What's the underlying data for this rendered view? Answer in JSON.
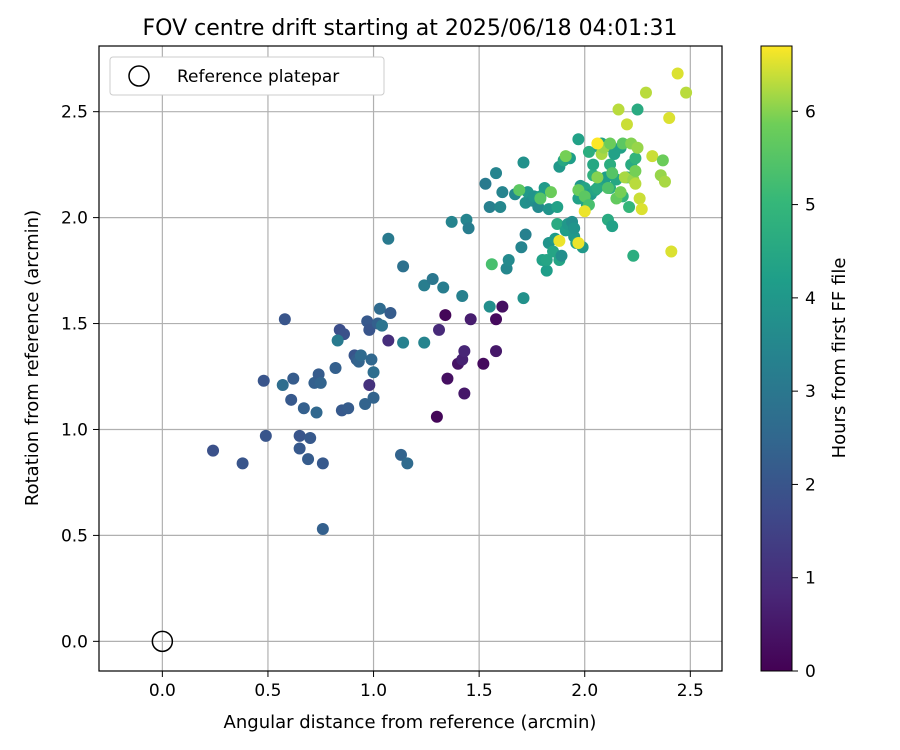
{
  "chart_data": {
    "type": "scatter",
    "title": "FOV centre drift starting at 2025/06/18 04:01:31",
    "xlabel": "Angular distance from reference (arcmin)",
    "ylabel": "Rotation from reference (arcmin)",
    "xlim": [
      -0.3,
      2.65
    ],
    "ylim": [
      -0.14,
      2.81
    ],
    "x_ticks": [
      0.0,
      0.5,
      1.0,
      1.5,
      2.0,
      2.5
    ],
    "x_tick_labels": [
      "0.0",
      "0.5",
      "1.0",
      "1.5",
      "2.0",
      "2.5"
    ],
    "y_ticks": [
      0.0,
      0.5,
      1.0,
      1.5,
      2.0,
      2.5
    ],
    "y_tick_labels": [
      "0.0",
      "0.5",
      "1.0",
      "1.5",
      "2.0",
      "2.5"
    ],
    "grid": true,
    "legend": {
      "placement": "top-left",
      "entries": [
        "Reference platepar"
      ]
    },
    "reference_point": {
      "x": 0.0,
      "y": 0.0,
      "marker": "open-circle"
    },
    "colorbar": {
      "label": "Hours from first FF file",
      "colormap": "viridis",
      "range": [
        0,
        6.7
      ],
      "ticks": [
        0,
        1,
        2,
        3,
        4,
        5,
        6
      ],
      "tick_labels": [
        "0",
        "1",
        "2",
        "3",
        "4",
        "5",
        "6"
      ]
    },
    "points": [
      [
        1.3,
        1.06,
        0.1
      ],
      [
        1.34,
        1.54,
        0.1
      ],
      [
        1.35,
        1.24,
        0.3
      ],
      [
        1.4,
        1.31,
        0.4
      ],
      [
        1.42,
        1.33,
        0.7
      ],
      [
        1.43,
        1.17,
        0.5
      ],
      [
        1.43,
        1.37,
        0.8
      ],
      [
        1.46,
        1.52,
        0.6
      ],
      [
        1.52,
        1.31,
        0.2
      ],
      [
        1.58,
        1.37,
        0.5
      ],
      [
        1.58,
        1.52,
        0.2
      ],
      [
        1.61,
        1.58,
        0.3
      ],
      [
        1.31,
        1.47,
        0.9
      ],
      [
        1.07,
        1.42,
        1.0
      ],
      [
        0.98,
        1.21,
        1.1
      ],
      [
        0.24,
        0.9,
        1.9
      ],
      [
        0.38,
        0.84,
        2.0
      ],
      [
        0.48,
        1.23,
        2.0
      ],
      [
        0.49,
        0.97,
        2.0
      ],
      [
        0.58,
        1.52,
        2.0
      ],
      [
        0.61,
        1.14,
        2.1
      ],
      [
        0.62,
        1.24,
        2.2
      ],
      [
        0.65,
        0.97,
        2.0
      ],
      [
        0.65,
        0.91,
        2.1
      ],
      [
        0.67,
        1.1,
        2.3
      ],
      [
        0.69,
        0.86,
        2.2
      ],
      [
        0.7,
        0.96,
        2.1
      ],
      [
        0.72,
        1.22,
        2.3
      ],
      [
        0.73,
        1.08,
        2.5
      ],
      [
        0.74,
        1.26,
        2.2
      ],
      [
        0.75,
        1.22,
        2.4
      ],
      [
        0.76,
        0.84,
        2.1
      ],
      [
        0.76,
        0.53,
        2.3
      ],
      [
        0.82,
        1.29,
        2.3
      ],
      [
        0.84,
        1.47,
        1.8
      ],
      [
        0.85,
        1.09,
        2.1
      ],
      [
        0.86,
        1.45,
        1.9
      ],
      [
        0.88,
        1.1,
        2.2
      ],
      [
        0.91,
        1.35,
        2.0
      ],
      [
        0.92,
        1.33,
        2.2
      ],
      [
        0.93,
        1.32,
        2.4
      ],
      [
        0.94,
        1.35,
        2.6
      ],
      [
        0.96,
        1.12,
        2.4
      ],
      [
        0.97,
        1.51,
        2.1
      ],
      [
        0.98,
        1.47,
        2.0
      ],
      [
        0.99,
        1.33,
        2.5
      ],
      [
        1.0,
        1.27,
        2.7
      ],
      [
        1.0,
        1.15,
        2.4
      ],
      [
        1.02,
        1.5,
        2.3
      ],
      [
        1.03,
        1.57,
        2.6
      ],
      [
        1.04,
        1.49,
        2.9
      ],
      [
        1.08,
        1.55,
        2.2
      ],
      [
        1.13,
        0.88,
        2.4
      ],
      [
        1.16,
        0.84,
        2.6
      ],
      [
        0.57,
        1.21,
        2.7
      ],
      [
        0.83,
        1.42,
        3.1
      ],
      [
        1.07,
        1.9,
        3.1
      ],
      [
        1.14,
        1.77,
        2.8
      ],
      [
        1.14,
        1.41,
        3.3
      ],
      [
        1.24,
        1.41,
        3.4
      ],
      [
        1.24,
        1.68,
        3.2
      ],
      [
        1.28,
        1.71,
        3.0
      ],
      [
        1.33,
        1.67,
        3.2
      ],
      [
        1.37,
        1.98,
        3.4
      ],
      [
        1.42,
        1.63,
        3.3
      ],
      [
        1.44,
        1.99,
        3.4
      ],
      [
        1.45,
        1.95,
        3.2
      ],
      [
        1.53,
        2.16,
        3.1
      ],
      [
        1.55,
        2.05,
        3.3
      ],
      [
        1.55,
        1.58,
        3.7
      ],
      [
        1.58,
        2.21,
        3.4
      ],
      [
        1.6,
        2.05,
        3.5
      ],
      [
        1.61,
        2.12,
        3.4
      ],
      [
        1.63,
        1.76,
        3.5
      ],
      [
        1.64,
        1.8,
        3.6
      ],
      [
        1.67,
        2.11,
        3.6
      ],
      [
        1.7,
        1.86,
        3.4
      ],
      [
        1.71,
        1.62,
        3.8
      ],
      [
        1.71,
        2.26,
        3.8
      ],
      [
        1.72,
        2.07,
        3.8
      ],
      [
        1.72,
        1.92,
        3.3
      ],
      [
        1.73,
        2.12,
        4.0
      ],
      [
        1.75,
        2.08,
        3.7
      ],
      [
        1.76,
        2.1,
        3.9
      ],
      [
        1.78,
        2.05,
        3.6
      ],
      [
        1.79,
        2.1,
        4.3
      ],
      [
        1.8,
        1.8,
        4.3
      ],
      [
        1.81,
        2.14,
        4.1
      ],
      [
        1.82,
        1.75,
        4.2
      ],
      [
        1.82,
        1.8,
        4.4
      ],
      [
        1.83,
        1.88,
        3.9
      ],
      [
        1.83,
        2.04,
        3.9
      ],
      [
        1.85,
        1.84,
        4.4
      ],
      [
        1.86,
        1.9,
        4.1
      ],
      [
        1.87,
        2.05,
        4.3
      ],
      [
        1.87,
        1.97,
        4.6
      ],
      [
        1.88,
        1.8,
        4.4
      ],
      [
        1.88,
        2.24,
        4.0
      ],
      [
        1.89,
        1.82,
        3.7
      ],
      [
        1.9,
        2.27,
        4.5
      ],
      [
        1.91,
        1.94,
        4.2
      ],
      [
        1.92,
        1.97,
        4.0
      ],
      [
        1.93,
        2.28,
        4.2
      ],
      [
        1.94,
        1.98,
        3.7
      ],
      [
        1.95,
        1.91,
        4.0
      ],
      [
        1.95,
        1.95,
        3.9
      ],
      [
        1.96,
        1.88,
        4.3
      ],
      [
        1.97,
        2.09,
        4.3
      ],
      [
        1.97,
        2.37,
        4.3
      ],
      [
        1.98,
        2.15,
        4.0
      ],
      [
        1.99,
        1.86,
        4.0
      ],
      [
        2.0,
        2.14,
        4.4
      ],
      [
        2.01,
        2.06,
        4.4
      ],
      [
        2.02,
        2.31,
        4.7
      ],
      [
        2.03,
        2.11,
        4.1
      ],
      [
        2.04,
        2.2,
        4.8
      ],
      [
        2.04,
        2.25,
        4.5
      ],
      [
        2.05,
        2.13,
        4.4
      ],
      [
        2.06,
        2.14,
        4.6
      ],
      [
        2.07,
        2.33,
        4.3
      ],
      [
        2.08,
        2.35,
        4.4
      ],
      [
        2.09,
        2.18,
        4.4
      ],
      [
        2.1,
        2.19,
        4.2
      ],
      [
        2.11,
        1.99,
        4.6
      ],
      [
        2.12,
        2.14,
        4.7
      ],
      [
        2.12,
        2.25,
        4.7
      ],
      [
        2.13,
        1.96,
        4.3
      ],
      [
        2.13,
        2.33,
        4.4
      ],
      [
        2.14,
        2.3,
        4.3
      ],
      [
        2.15,
        2.18,
        4.5
      ],
      [
        2.17,
        2.33,
        4.3
      ],
      [
        2.18,
        2.1,
        4.9
      ],
      [
        2.2,
        2.19,
        4.8
      ],
      [
        2.21,
        2.05,
        5.0
      ],
      [
        2.22,
        2.25,
        4.6
      ],
      [
        2.23,
        1.82,
        4.7
      ],
      [
        2.24,
        2.28,
        4.9
      ],
      [
        2.25,
        2.51,
        4.6
      ],
      [
        1.56,
        1.78,
        5.3
      ],
      [
        1.69,
        2.13,
        5.6
      ],
      [
        1.79,
        2.09,
        5.5
      ],
      [
        1.84,
        2.12,
        5.8
      ],
      [
        1.91,
        2.29,
        5.9
      ],
      [
        1.97,
        2.13,
        5.8
      ],
      [
        2.0,
        2.1,
        5.6
      ],
      [
        2.02,
        2.06,
        5.3
      ],
      [
        2.06,
        2.19,
        6.0
      ],
      [
        2.08,
        2.3,
        6.2
      ],
      [
        2.09,
        2.33,
        6.1
      ],
      [
        2.11,
        2.14,
        5.4
      ],
      [
        2.12,
        2.35,
        5.8
      ],
      [
        2.13,
        2.21,
        5.5
      ],
      [
        2.15,
        2.09,
        5.7
      ],
      [
        2.16,
        2.51,
        6.3
      ],
      [
        2.17,
        2.12,
        5.9
      ],
      [
        2.18,
        2.35,
        5.6
      ],
      [
        2.19,
        2.19,
        6.2
      ],
      [
        2.2,
        2.44,
        6.4
      ],
      [
        2.22,
        2.35,
        6.0
      ],
      [
        2.23,
        2.18,
        6.1
      ],
      [
        2.24,
        2.22,
        5.9
      ],
      [
        2.24,
        2.16,
        6.3
      ],
      [
        2.25,
        2.33,
        6.1
      ],
      [
        2.26,
        2.09,
        6.4
      ],
      [
        2.27,
        2.04,
        6.5
      ],
      [
        2.29,
        2.59,
        6.3
      ],
      [
        2.32,
        2.29,
        6.4
      ],
      [
        2.36,
        2.2,
        6.1
      ],
      [
        2.37,
        2.27,
        5.8
      ],
      [
        2.38,
        2.17,
        6.2
      ],
      [
        2.4,
        2.47,
        6.5
      ],
      [
        2.41,
        1.84,
        6.5
      ],
      [
        2.44,
        2.68,
        6.5
      ],
      [
        2.48,
        2.59,
        6.3
      ],
      [
        1.88,
        1.89,
        6.6
      ],
      [
        1.97,
        1.88,
        6.6
      ],
      [
        2.0,
        2.03,
        6.6
      ],
      [
        2.06,
        2.35,
        6.7
      ]
    ]
  }
}
